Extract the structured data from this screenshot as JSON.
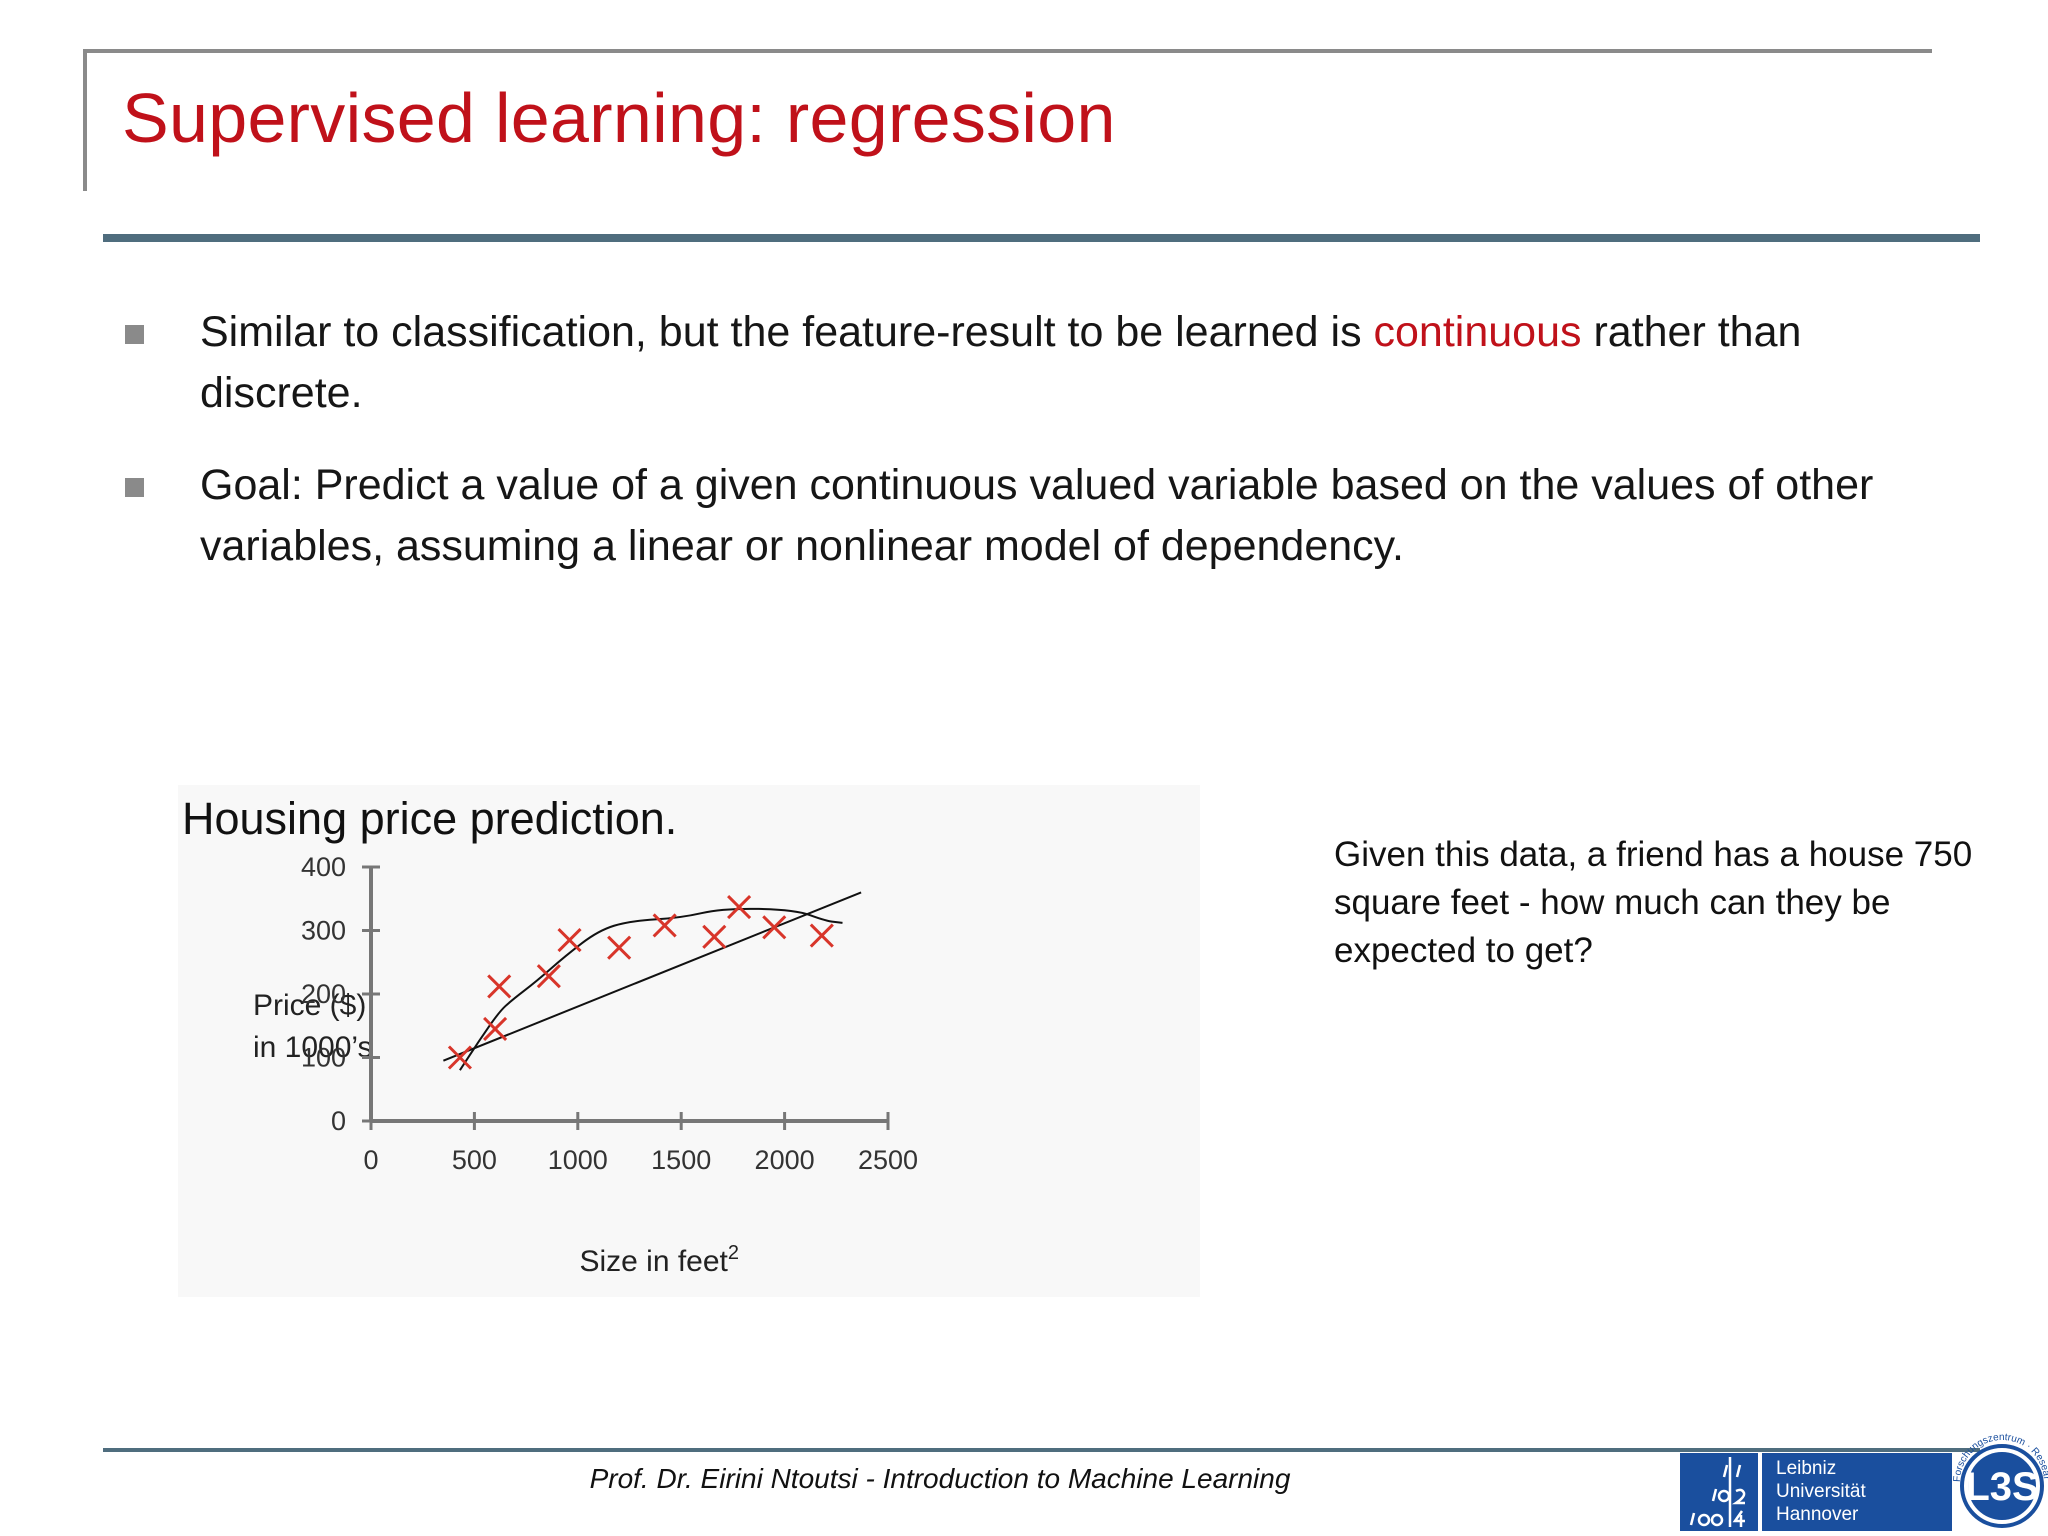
{
  "slide": {
    "title": "Supervised learning: regression"
  },
  "bullets": [
    {
      "before": "Similar to classification, but the feature-result to be learned is ",
      "highlight": "continuous",
      "after": " rather than discrete."
    },
    {
      "text": "Goal: Predict a value of a given continuous valued variable based on the values of other variables, assuming a linear or nonlinear model of dependency."
    }
  ],
  "chart_data": {
    "type": "scatter",
    "title": "Housing price prediction.",
    "xlabel": "Size in feet",
    "xlabel_superscript": "2",
    "ylabel_lines": [
      "Price ($)",
      "in 1000’s"
    ],
    "xlim": [
      0,
      2500
    ],
    "ylim": [
      0,
      400
    ],
    "x_ticks": [
      0,
      500,
      1000,
      1500,
      2000,
      2500
    ],
    "y_ticks": [
      0,
      100,
      200,
      300,
      400
    ],
    "grid": false,
    "points": [
      {
        "x": 430,
        "y": 100
      },
      {
        "x": 600,
        "y": 145
      },
      {
        "x": 620,
        "y": 212
      },
      {
        "x": 860,
        "y": 228
      },
      {
        "x": 960,
        "y": 285
      },
      {
        "x": 1200,
        "y": 273
      },
      {
        "x": 1420,
        "y": 308
      },
      {
        "x": 1660,
        "y": 290
      },
      {
        "x": 1780,
        "y": 337
      },
      {
        "x": 1950,
        "y": 305
      },
      {
        "x": 2180,
        "y": 292
      }
    ],
    "linear_fit": [
      {
        "x": 350,
        "y": 95
      },
      {
        "x": 2370,
        "y": 360
      }
    ],
    "nonlinear_fit": [
      {
        "x": 430,
        "y": 80
      },
      {
        "x": 520,
        "y": 125
      },
      {
        "x": 620,
        "y": 172
      },
      {
        "x": 680,
        "y": 190
      },
      {
        "x": 800,
        "y": 220
      },
      {
        "x": 940,
        "y": 260
      },
      {
        "x": 1100,
        "y": 300
      },
      {
        "x": 1250,
        "y": 315
      },
      {
        "x": 1500,
        "y": 320
      },
      {
        "x": 1700,
        "y": 335
      },
      {
        "x": 2050,
        "y": 333
      },
      {
        "x": 2200,
        "y": 315
      },
      {
        "x": 2280,
        "y": 312
      }
    ],
    "colors": {
      "marker": "#d8352a",
      "axis": "#777777",
      "fit_line": "#111111"
    }
  },
  "question": "Given this data, a friend has a house 750 square feet - how much can they be expected to get?",
  "footer": {
    "text": "Prof. Dr. Eirini Ntoutsi - Introduction to Machine Learning"
  },
  "logos": {
    "luh_lines": [
      "Leibniz",
      "Universität",
      "Hannover"
    ],
    "l3s": "L3S",
    "l3s_ring": "Forschungszentrum · Research Center"
  },
  "colors": {
    "title": "#c0111a",
    "accent": "#c0111a",
    "rule": "#4f6d7e",
    "bullet_marker": "#8a8a8a",
    "luh_blue": "#1a4f9e"
  }
}
